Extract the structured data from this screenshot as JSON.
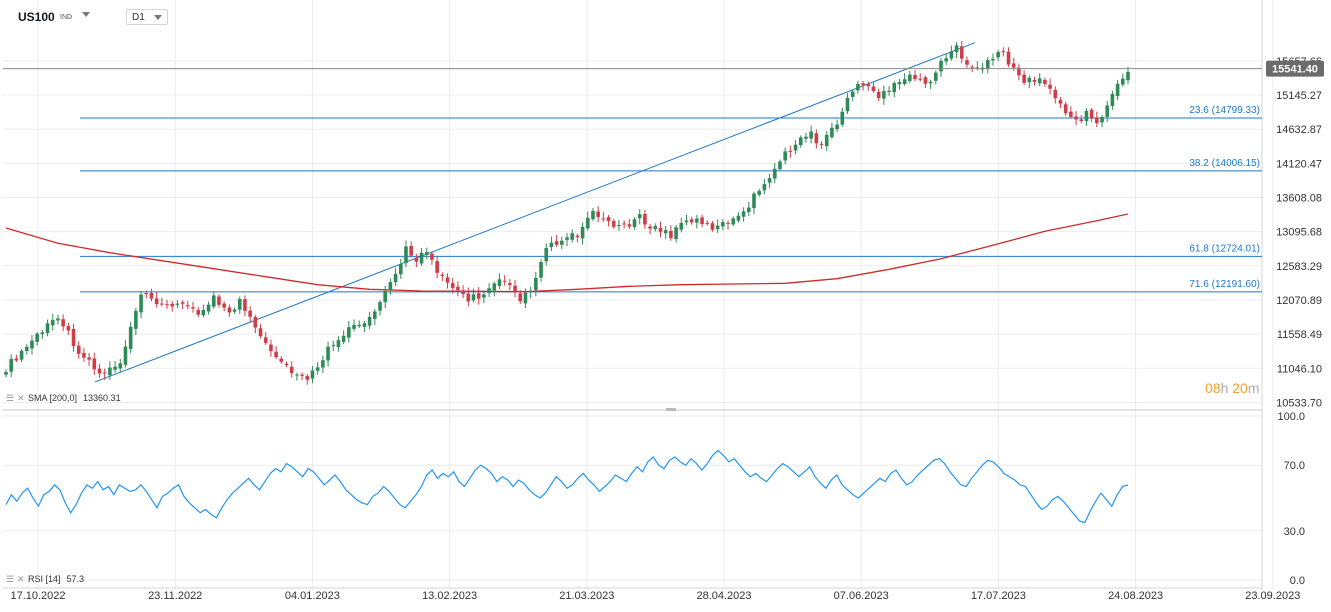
{
  "header": {
    "symbol": "US100",
    "symbol_tag": "IND",
    "timeframe": "D1"
  },
  "legends": {
    "sma_text": "SMA [200,0]",
    "sma_value": "13360.31",
    "rsi_text": "RSI [14]",
    "rsi_value": "57.3"
  },
  "timer": {
    "hours": "08",
    "h": "h",
    "minutes": "20",
    "m": "m"
  },
  "colors": {
    "up": "#2e8b57",
    "down": "#d03c47",
    "sma": "#d02b2b",
    "fib": "#1f78c8",
    "rsi": "#2196f3",
    "price_badge": "#6b6b6b",
    "timer": "#f0a02a"
  },
  "chart_data": [
    {
      "type": "candlestick",
      "title": "US100",
      "timeframe": "D1",
      "ylim": [
        10450,
        16300
      ],
      "y_ticks": [
        "15657.66",
        "15145.27",
        "14632.87",
        "14120.47",
        "13608.08",
        "13095.68",
        "12583.29",
        "12070.89",
        "11558.49",
        "11046.10",
        "10533.70"
      ],
      "x_ticks": [
        "17.10.2022",
        "23.11.2022",
        "04.01.2023",
        "13.02.2023",
        "21.03.2023",
        "28.04.2023",
        "07.06.2023",
        "17.07.2023",
        "24.08.2023",
        "23.09.2023"
      ],
      "last_price": "15541.40",
      "close_path": [
        [
          0,
          11050
        ],
        [
          6,
          11550
        ],
        [
          10,
          11850
        ],
        [
          14,
          11300
        ],
        [
          18,
          10950
        ],
        [
          22,
          11100
        ],
        [
          26,
          12150
        ],
        [
          30,
          11950
        ],
        [
          34,
          12050
        ],
        [
          37,
          11800
        ],
        [
          40,
          12150
        ],
        [
          43,
          11850
        ],
        [
          45,
          12050
        ],
        [
          48,
          11700
        ],
        [
          50,
          11450
        ],
        [
          53,
          11150
        ],
        [
          56,
          10950
        ],
        [
          58,
          10850
        ],
        [
          60,
          11100
        ],
        [
          63,
          11450
        ],
        [
          66,
          11650
        ],
        [
          69,
          11700
        ],
        [
          72,
          12000
        ],
        [
          75,
          12450
        ],
        [
          77,
          12850
        ],
        [
          79,
          12700
        ],
        [
          81,
          12800
        ],
        [
          83,
          12450
        ],
        [
          86,
          12250
        ],
        [
          89,
          12100
        ],
        [
          92,
          12150
        ],
        [
          95,
          12350
        ],
        [
          97,
          12250
        ],
        [
          99,
          12050
        ],
        [
          102,
          12350
        ],
        [
          104,
          12850
        ],
        [
          107,
          12950
        ],
        [
          110,
          13050
        ],
        [
          113,
          13350
        ],
        [
          116,
          13250
        ],
        [
          119,
          13150
        ],
        [
          122,
          13300
        ],
        [
          125,
          13150
        ],
        [
          128,
          13050
        ],
        [
          131,
          13300
        ],
        [
          134,
          13200
        ],
        [
          137,
          13150
        ],
        [
          140,
          13300
        ],
        [
          143,
          13500
        ],
        [
          146,
          13850
        ],
        [
          149,
          14150
        ],
        [
          152,
          14450
        ],
        [
          155,
          14550
        ],
        [
          157,
          14400
        ],
        [
          160,
          14750
        ],
        [
          162,
          15050
        ],
        [
          164,
          15350
        ],
        [
          166,
          15250
        ],
        [
          168,
          15100
        ],
        [
          171,
          15350
        ],
        [
          174,
          15450
        ],
        [
          177,
          15300
        ],
        [
          179,
          15500
        ],
        [
          181,
          15700
        ],
        [
          183,
          15850
        ],
        [
          185,
          15650
        ],
        [
          188,
          15550
        ],
        [
          190,
          15700
        ],
        [
          192,
          15800
        ],
        [
          194,
          15500
        ],
        [
          196,
          15350
        ],
        [
          199,
          15400
        ],
        [
          201,
          15200
        ],
        [
          203,
          15000
        ],
        [
          206,
          14750
        ],
        [
          208,
          14850
        ],
        [
          210,
          14750
        ],
        [
          212,
          14950
        ],
        [
          214,
          15300
        ],
        [
          216,
          15550
        ]
      ],
      "sma_200": {
        "name": "SMA [200,0]",
        "last": 13360.31,
        "path": [
          [
            0,
            13150
          ],
          [
            10,
            12920
          ],
          [
            20,
            12780
          ],
          [
            30,
            12660
          ],
          [
            40,
            12540
          ],
          [
            50,
            12420
          ],
          [
            60,
            12300
          ],
          [
            70,
            12230
          ],
          [
            80,
            12205
          ],
          [
            90,
            12200
          ],
          [
            100,
            12195
          ],
          [
            110,
            12230
          ],
          [
            120,
            12275
          ],
          [
            130,
            12300
          ],
          [
            140,
            12310
          ],
          [
            150,
            12320
          ],
          [
            160,
            12390
          ],
          [
            170,
            12530
          ],
          [
            180,
            12690
          ],
          [
            190,
            12890
          ],
          [
            200,
            13100
          ],
          [
            210,
            13260
          ],
          [
            216,
            13360
          ]
        ]
      },
      "fibonacci": {
        "swing_low": 10840,
        "swing_high": 15930,
        "levels": [
          {
            "label": "23.6 (14799.33)",
            "value": 14799.33
          },
          {
            "label": "38.2 (14006.15)",
            "value": 14006.15
          },
          {
            "label": "61.8 (12724.01)",
            "value": 12724.01
          },
          {
            "label": "71.6 (12191.60)",
            "value": 12191.6
          }
        ]
      }
    },
    {
      "type": "line",
      "name": "RSI [14]",
      "ylim": [
        0,
        100
      ],
      "y_ticks": [
        "100.0",
        "70.0",
        "30.0",
        "0.0"
      ],
      "last": 57.3,
      "values": [
        46,
        52,
        48,
        53,
        56,
        50,
        45,
        52,
        54,
        58,
        55,
        47,
        41,
        46,
        53,
        58,
        56,
        60,
        55,
        57,
        52,
        58,
        56,
        54,
        55,
        58,
        54,
        49,
        44,
        51,
        53,
        56,
        58,
        51,
        47,
        44,
        41,
        43,
        40,
        38,
        44,
        49,
        53,
        56,
        59,
        62,
        58,
        55,
        60,
        65,
        68,
        66,
        71,
        69,
        66,
        63,
        68,
        66,
        62,
        58,
        61,
        64,
        60,
        55,
        52,
        49,
        47,
        46,
        51,
        53,
        57,
        54,
        50,
        46,
        44,
        48,
        52,
        57,
        64,
        67,
        62,
        65,
        63,
        66,
        60,
        57,
        62,
        67,
        70,
        68,
        65,
        60,
        63,
        61,
        57,
        61,
        59,
        55,
        52,
        50,
        53,
        58,
        63,
        60,
        56,
        58,
        62,
        65,
        61,
        58,
        54,
        57,
        60,
        64,
        62,
        60,
        65,
        69,
        66,
        72,
        75,
        70,
        68,
        73,
        75,
        72,
        70,
        74,
        71,
        67,
        71,
        76,
        79,
        76,
        72,
        74,
        70,
        66,
        63,
        65,
        62,
        60,
        64,
        68,
        71,
        69,
        66,
        63,
        66,
        69,
        63,
        59,
        56,
        61,
        64,
        58,
        55,
        52,
        50,
        53,
        56,
        59,
        62,
        60,
        65,
        67,
        62,
        58,
        60,
        64,
        67,
        70,
        73,
        74,
        71,
        66,
        62,
        58,
        57,
        62,
        66,
        70,
        73,
        72,
        69,
        65,
        63,
        61,
        58,
        57,
        52,
        47,
        43,
        45,
        49,
        51,
        48,
        44,
        40,
        36,
        35,
        42,
        48,
        53,
        49,
        45,
        52,
        57,
        58
      ]
    }
  ]
}
